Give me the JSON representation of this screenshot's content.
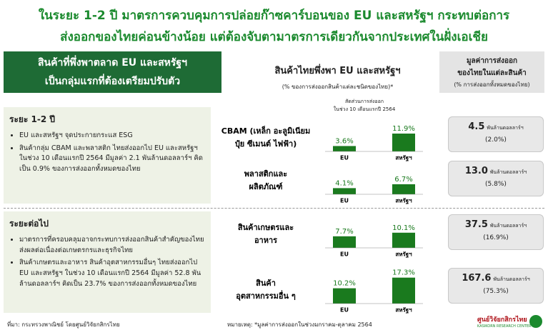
{
  "header": {
    "title_lines": [
      "ในระยะ 1-2 ปี มาตรการควบคุมการปล่อยก๊าซคาร์บอนของ EU และสหรัฐฯ กระทบต่อการ",
      "ส่งออกของไทยค่อนข้างน้อย แต่ต้องจับตามาตรการเดียวกันจากประเทศในฝั่งเอเชีย"
    ]
  },
  "left_header": [
    "สินค้าที่พึ่งพาตลาด EU และสหรัฐฯ",
    "เป็นกลุ่มแรกที่ต้องเตรียมปรับตัว"
  ],
  "middle_header": {
    "title": "สินค้าไทยพึ่งพา EU และสหรัฐฯ",
    "subtitle": "(% ของการส่งออกสินค้าแต่ละชนิดของไทย)*"
  },
  "right_header": [
    "มูลค่าการส่งออก",
    "ของไทยในแต่ละสินค้า",
    "(% การส่งออกทั้งหมดของไทย)"
  ],
  "chart_note": [
    "สัดส่วนการส่งออก",
    "ในช่วง 10 เดือนแรกปี 2564"
  ],
  "sections": [
    {
      "title": "ระยะ 1-2 ปี",
      "bullets": [
        "EU และสหรัฐฯ จุดประกายกระแส ESG",
        "สินค้ากลุ่ม CBAM และพลาสติก ไทยส่งออกไป EU และสหรัฐฯ ในช่วง 10 เดือนแรกปี 2564 มีมูลค่า 2.1 พันล้านดอลลาร์ฯ คิดเป็น 0.9% ของการส่งออกทั้งหมดของไทย"
      ]
    },
    {
      "title": "ระยะต่อไป",
      "bullets": [
        "มาตรการที่ครอบคลุมอาจกระทบการส่งออกสินค้าสำคัญของไทยส่งผลต่อเนื่องต่อเกษตรกรและธุรกิจไทย",
        "สินค้าเกษตรและอาหาร สินค้าอุตสาหกรรมอื่นๆ ไทยส่งออกไป EU และสหรัฐฯ ในช่วง 10 เดือนแรกปี 2564 มีมูลค่า 52.8 พันล้านดอลลาร์ฯ คิดเป็น 23.7% ของการส่งออกทั้งหมดของไทย"
      ]
    }
  ],
  "chart_data": [
    {
      "type": "bar",
      "title": [
        "CBAM (เหล็ก อะลูมิเนียม",
        "ปุ๋ย ซีเมนต์ ไฟฟ้า)"
      ],
      "categories": [
        "EU",
        "สหรัฐฯ"
      ],
      "values": [
        3.6,
        11.9
      ],
      "value_labels": [
        "3.6%",
        "11.9%"
      ],
      "color": "#1a7a1e"
    },
    {
      "type": "bar",
      "title": [
        "พลาสติกและ",
        "ผลิตภัณฑ์"
      ],
      "categories": [
        "EU",
        "สหรัฐฯ"
      ],
      "values": [
        4.1,
        6.7
      ],
      "value_labels": [
        "4.1%",
        "6.7%"
      ],
      "color": "#1a7a1e"
    },
    {
      "type": "bar",
      "title": [
        "สินค้าเกษตรและ",
        "อาหาร"
      ],
      "categories": [
        "EU",
        "สหรัฐฯ"
      ],
      "values": [
        7.7,
        10.1
      ],
      "value_labels": [
        "7.7%",
        "10.1%"
      ],
      "color": "#1a7a1e"
    },
    {
      "type": "bar",
      "title": [
        "สินค้า",
        "อุตสาหกรรมอื่น ๆ"
      ],
      "categories": [
        "EU",
        "สหรัฐฯ"
      ],
      "values": [
        10.2,
        17.3
      ],
      "value_labels": [
        "10.2%",
        "17.3%"
      ],
      "color": "#1a7a1e"
    }
  ],
  "export_values": [
    {
      "value": "4.5",
      "unit": "พันล้านดอลลาร์ฯ",
      "share": "(2.0%)"
    },
    {
      "value": "13.0",
      "unit": "พันล้านดอลลาร์ฯ",
      "share": "(5.8%)"
    },
    {
      "value": "37.5",
      "unit": "พันล้านดอลลาร์ฯ",
      "share": "(16.9%)"
    },
    {
      "value": "167.6",
      "unit": "พันล้านดอลลาร์ฯ",
      "share": "(75.3%)"
    }
  ],
  "footer": {
    "source": "ที่มา: กระทรวงพาณิชย์ โดยศูนย์วิจัยกสิกรไทย",
    "note": "หมายเหตุ: *มูลค่าการส่งออกในช่วงมกราคม-ตุลาคม 2564",
    "logo": "ศูนย์วิจัยกสิกรไทย",
    "logo_sub": "KASIKORN RESEARCH CENTER"
  }
}
